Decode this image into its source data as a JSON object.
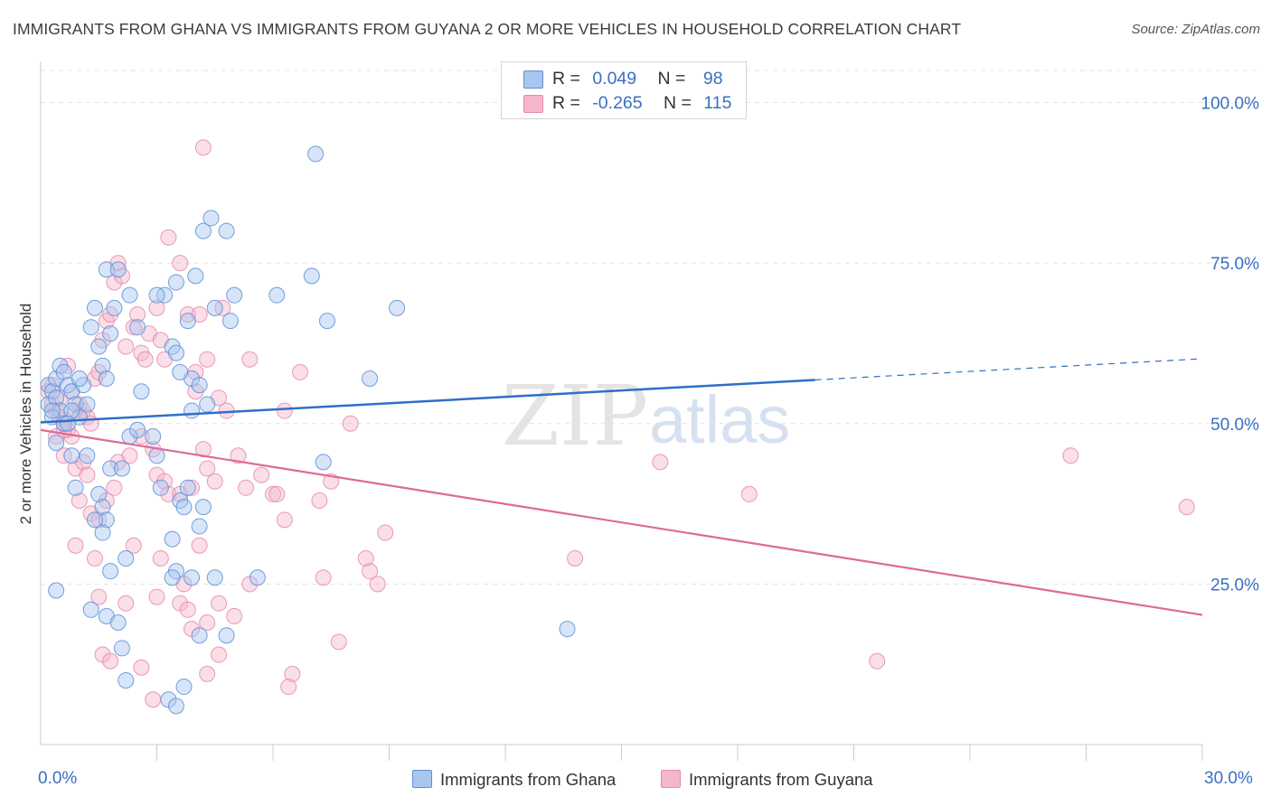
{
  "title": "IMMIGRANTS FROM GHANA VS IMMIGRANTS FROM GUYANA 2 OR MORE VEHICLES IN HOUSEHOLD CORRELATION CHART",
  "source": "Source: ZipAtlas.com",
  "watermark": "ZIPatlas",
  "legend": {
    "rows": [
      {
        "r_label": "R =",
        "r_value": "0.049",
        "n_label": "N =",
        "n_value": "98"
      },
      {
        "r_label": "R =",
        "r_value": "-0.265",
        "n_label": "N =",
        "n_value": "115"
      }
    ],
    "bottom": [
      "Immigrants from Ghana",
      "Immigrants from Guyana"
    ]
  },
  "colors": {
    "ghana_fill": "#a9c6ef",
    "ghana_stroke": "#5b8fd6",
    "ghana_line": "#2f6fc7",
    "guyana_fill": "#f5b6cb",
    "guyana_stroke": "#e58aa9",
    "guyana_line": "#e0699a",
    "tick_label": "#3a6fc4",
    "grid": "#e2e2e2"
  },
  "chart_data": {
    "type": "scatter",
    "title": "IMMIGRANTS FROM GHANA VS IMMIGRANTS FROM GUYANA 2 OR MORE VEHICLES IN HOUSEHOLD CORRELATION CHART",
    "xlabel": "",
    "ylabel": "2 or more Vehicles in Household",
    "xlim": [
      0,
      30
    ],
    "ylim": [
      0,
      105
    ],
    "x_tick_labels": [
      "0.0%",
      "30.0%"
    ],
    "y_ticks": [
      25,
      50,
      75,
      100
    ],
    "y_tick_labels": [
      "25.0%",
      "50.0%",
      "75.0%",
      "100.0%"
    ],
    "grid": true,
    "legend_position": "top-center",
    "series": [
      {
        "name": "Immigrants from Ghana",
        "r": 0.049,
        "n": 98,
        "trend": {
          "x0": 0,
          "y0": 50.2,
          "x1": 20,
          "y1": 56.8,
          "dashed_to_x": 30,
          "dashed_to_y": 60.1
        },
        "points": [
          [
            0.2,
            56
          ],
          [
            0.3,
            55
          ],
          [
            0.2,
            53
          ],
          [
            0.4,
            54
          ],
          [
            0.5,
            52
          ],
          [
            0.3,
            51
          ],
          [
            0.6,
            50
          ],
          [
            0.4,
            57
          ],
          [
            0.5,
            59
          ],
          [
            0.6,
            58
          ],
          [
            0.7,
            56
          ],
          [
            0.8,
            55
          ],
          [
            0.9,
            53
          ],
          [
            1.0,
            51
          ],
          [
            0.8,
            52
          ],
          [
            0.7,
            50
          ],
          [
            1.1,
            56
          ],
          [
            1.2,
            53
          ],
          [
            1.3,
            65
          ],
          [
            1.4,
            68
          ],
          [
            1.5,
            62
          ],
          [
            1.6,
            59
          ],
          [
            1.7,
            57
          ],
          [
            1.8,
            64
          ],
          [
            1.9,
            68
          ],
          [
            1.7,
            74
          ],
          [
            2.0,
            74
          ],
          [
            2.3,
            70
          ],
          [
            2.5,
            65
          ],
          [
            3.2,
            70
          ],
          [
            3.0,
            70
          ],
          [
            3.5,
            72
          ],
          [
            3.4,
            62
          ],
          [
            3.5,
            61
          ],
          [
            3.8,
            66
          ],
          [
            3.9,
            57
          ],
          [
            4.0,
            73
          ],
          [
            4.5,
            68
          ],
          [
            4.4,
            82
          ],
          [
            4.2,
            80
          ],
          [
            4.8,
            80
          ],
          [
            5.0,
            70
          ],
          [
            4.9,
            66
          ],
          [
            6.1,
            70
          ],
          [
            7.0,
            73
          ],
          [
            7.4,
            66
          ],
          [
            7.1,
            92
          ],
          [
            8.5,
            57
          ],
          [
            9.2,
            68
          ],
          [
            0.3,
            52
          ],
          [
            0.4,
            47
          ],
          [
            0.8,
            45
          ],
          [
            1.2,
            45
          ],
          [
            0.9,
            40
          ],
          [
            1.5,
            39
          ],
          [
            1.6,
            37
          ],
          [
            1.7,
            35
          ],
          [
            1.4,
            35
          ],
          [
            1.8,
            43
          ],
          [
            2.1,
            43
          ],
          [
            2.3,
            48
          ],
          [
            2.5,
            49
          ],
          [
            2.9,
            48
          ],
          [
            3.0,
            45
          ],
          [
            3.1,
            40
          ],
          [
            3.6,
            38
          ],
          [
            3.7,
            37
          ],
          [
            3.8,
            40
          ],
          [
            3.4,
            32
          ],
          [
            3.5,
            27
          ],
          [
            3.4,
            26
          ],
          [
            3.9,
            26
          ],
          [
            4.2,
            37
          ],
          [
            4.1,
            34
          ],
          [
            4.5,
            26
          ],
          [
            5.6,
            26
          ],
          [
            4.1,
            17
          ],
          [
            4.8,
            17
          ],
          [
            3.7,
            9
          ],
          [
            3.3,
            7
          ],
          [
            3.5,
            6
          ],
          [
            2.2,
            10
          ],
          [
            2.1,
            15
          ],
          [
            1.7,
            20
          ],
          [
            2.0,
            19
          ],
          [
            1.8,
            27
          ],
          [
            2.2,
            29
          ],
          [
            1.6,
            33
          ],
          [
            0.4,
            24
          ],
          [
            1.3,
            21
          ],
          [
            4.3,
            53
          ],
          [
            3.9,
            52
          ],
          [
            4.1,
            56
          ],
          [
            3.6,
            58
          ],
          [
            7.3,
            44
          ],
          [
            13.6,
            18
          ],
          [
            2.6,
            55
          ],
          [
            1.0,
            57
          ]
        ]
      },
      {
        "name": "Immigrants from Guyana",
        "r": -0.265,
        "n": 115,
        "trend": {
          "x0": 0,
          "y0": 49.0,
          "x1": 30,
          "y1": 20.2
        },
        "points": [
          [
            0.2,
            55
          ],
          [
            0.3,
            53
          ],
          [
            0.4,
            52
          ],
          [
            0.5,
            51
          ],
          [
            0.6,
            50
          ],
          [
            0.7,
            49
          ],
          [
            0.8,
            48
          ],
          [
            0.9,
            52
          ],
          [
            0.3,
            56
          ],
          [
            0.5,
            54
          ],
          [
            0.6,
            49
          ],
          [
            0.8,
            55
          ],
          [
            1.0,
            53
          ],
          [
            1.1,
            52
          ],
          [
            1.2,
            51
          ],
          [
            1.3,
            50
          ],
          [
            1.4,
            57
          ],
          [
            1.5,
            58
          ],
          [
            1.6,
            63
          ],
          [
            1.7,
            66
          ],
          [
            1.8,
            67
          ],
          [
            1.9,
            72
          ],
          [
            2.0,
            75
          ],
          [
            2.1,
            73
          ],
          [
            2.2,
            62
          ],
          [
            2.4,
            65
          ],
          [
            2.5,
            67
          ],
          [
            2.6,
            61
          ],
          [
            2.7,
            60
          ],
          [
            2.8,
            64
          ],
          [
            3.0,
            68
          ],
          [
            3.1,
            63
          ],
          [
            3.2,
            60
          ],
          [
            3.3,
            79
          ],
          [
            3.6,
            75
          ],
          [
            3.8,
            67
          ],
          [
            4.0,
            58
          ],
          [
            4.0,
            55
          ],
          [
            4.1,
            67
          ],
          [
            4.3,
            60
          ],
          [
            4.6,
            54
          ],
          [
            4.8,
            52
          ],
          [
            4.7,
            68
          ],
          [
            5.4,
            60
          ],
          [
            6.3,
            52
          ],
          [
            6.7,
            58
          ],
          [
            8.0,
            50
          ],
          [
            4.2,
            93
          ],
          [
            0.4,
            48
          ],
          [
            0.6,
            45
          ],
          [
            0.9,
            43
          ],
          [
            1.1,
            44
          ],
          [
            1.2,
            42
          ],
          [
            1.0,
            38
          ],
          [
            1.3,
            36
          ],
          [
            1.5,
            35
          ],
          [
            1.7,
            38
          ],
          [
            1.9,
            40
          ],
          [
            2.0,
            44
          ],
          [
            2.3,
            45
          ],
          [
            2.6,
            48
          ],
          [
            2.9,
            46
          ],
          [
            3.0,
            42
          ],
          [
            3.2,
            41
          ],
          [
            3.3,
            39
          ],
          [
            3.6,
            39
          ],
          [
            3.9,
            40
          ],
          [
            4.2,
            46
          ],
          [
            4.3,
            43
          ],
          [
            4.5,
            41
          ],
          [
            5.1,
            45
          ],
          [
            5.7,
            42
          ],
          [
            6.0,
            39
          ],
          [
            6.1,
            39
          ],
          [
            6.3,
            35
          ],
          [
            7.2,
            38
          ],
          [
            7.5,
            41
          ],
          [
            8.4,
            29
          ],
          [
            8.9,
            33
          ],
          [
            8.7,
            25
          ],
          [
            8.5,
            27
          ],
          [
            7.3,
            26
          ],
          [
            5.3,
            40
          ],
          [
            5.4,
            25
          ],
          [
            0.9,
            31
          ],
          [
            1.4,
            29
          ],
          [
            2.4,
            31
          ],
          [
            3.1,
            29
          ],
          [
            3.7,
            25
          ],
          [
            4.1,
            31
          ],
          [
            1.5,
            23
          ],
          [
            2.2,
            22
          ],
          [
            3.0,
            23
          ],
          [
            3.6,
            22
          ],
          [
            3.8,
            21
          ],
          [
            4.3,
            19
          ],
          [
            4.6,
            22
          ],
          [
            5.0,
            20
          ],
          [
            3.9,
            18
          ],
          [
            2.6,
            12
          ],
          [
            4.6,
            14
          ],
          [
            4.3,
            11
          ],
          [
            6.5,
            11
          ],
          [
            6.4,
            9
          ],
          [
            7.7,
            16
          ],
          [
            1.6,
            14
          ],
          [
            1.8,
            13
          ],
          [
            2.9,
            7
          ],
          [
            13.8,
            29
          ],
          [
            16.0,
            44
          ],
          [
            18.3,
            39
          ],
          [
            21.6,
            13
          ],
          [
            26.6,
            45
          ],
          [
            29.6,
            37
          ],
          [
            0.7,
            59
          ]
        ]
      }
    ]
  }
}
